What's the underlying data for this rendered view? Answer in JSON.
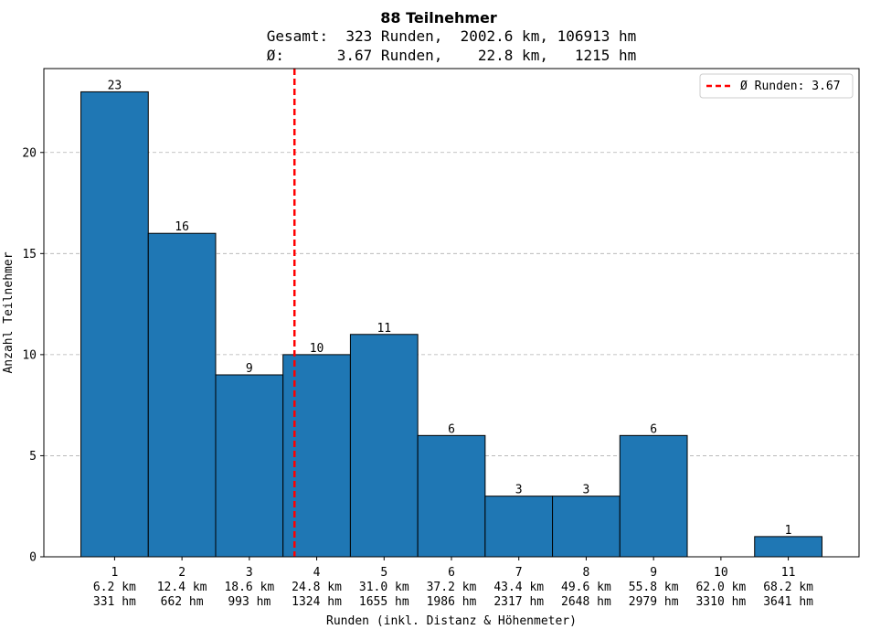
{
  "chart_data": {
    "type": "bar",
    "title": "88 Teilnehmer",
    "subtitle_lines": [
      "Gesamt:  323 Runden,  2002.6 km, 106913 hm",
      "Ø:      3.67 Runden,    22.8 km,   1215 hm"
    ],
    "xlabel": "Runden (inkl. Distanz & Höhenmeter)",
    "ylabel": "Anzahl Teilnehmer",
    "categories": [
      {
        "runden": "1",
        "km": "6.2 km",
        "hm": "331 hm"
      },
      {
        "runden": "2",
        "km": "12.4 km",
        "hm": "662 hm"
      },
      {
        "runden": "3",
        "km": "18.6 km",
        "hm": "993 hm"
      },
      {
        "runden": "4",
        "km": "24.8 km",
        "hm": "1324 hm"
      },
      {
        "runden": "5",
        "km": "31.0 km",
        "hm": "1655 hm"
      },
      {
        "runden": "6",
        "km": "37.2 km",
        "hm": "1986 hm"
      },
      {
        "runden": "7",
        "km": "43.4 km",
        "hm": "2317 hm"
      },
      {
        "runden": "8",
        "km": "49.6 km",
        "hm": "2648 hm"
      },
      {
        "runden": "9",
        "km": "55.8 km",
        "hm": "2979 hm"
      },
      {
        "runden": "10",
        "km": "62.0 km",
        "hm": "3310 hm"
      },
      {
        "runden": "11",
        "km": "68.2 km",
        "hm": "3641 hm"
      }
    ],
    "values": [
      23,
      16,
      9,
      10,
      11,
      6,
      3,
      3,
      6,
      0,
      1
    ],
    "value_labels": [
      "23",
      "16",
      "9",
      "10",
      "11",
      "6",
      "3",
      "3",
      "6",
      "",
      "1"
    ],
    "ylim": [
      0,
      24.15
    ],
    "yticks": [
      0,
      5,
      10,
      15,
      20
    ],
    "mean_line": {
      "value": 3.67,
      "label": "Ø Runden: 3.67",
      "color": "#ff0000"
    },
    "bar_color": "#1f77b4",
    "grid": "y-dashed",
    "legend_position": "top-right"
  }
}
